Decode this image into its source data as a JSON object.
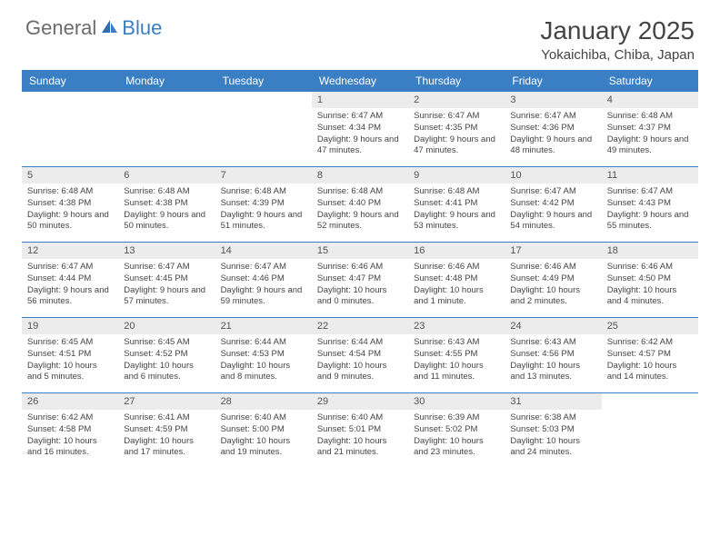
{
  "logo": {
    "text_gray": "General",
    "text_blue": "Blue"
  },
  "title": "January 2025",
  "location": "Yokaichiba, Chiba, Japan",
  "colors": {
    "accent": "#3a7fc4",
    "header_bg": "#ececec",
    "text": "#444444",
    "logo_gray": "#6b6b6b"
  },
  "day_headers": [
    "Sunday",
    "Monday",
    "Tuesday",
    "Wednesday",
    "Thursday",
    "Friday",
    "Saturday"
  ],
  "weeks": [
    [
      {
        "empty": true
      },
      {
        "empty": true
      },
      {
        "empty": true
      },
      {
        "num": "1",
        "sunrise": "Sunrise: 6:47 AM",
        "sunset": "Sunset: 4:34 PM",
        "daylight": "Daylight: 9 hours and 47 minutes."
      },
      {
        "num": "2",
        "sunrise": "Sunrise: 6:47 AM",
        "sunset": "Sunset: 4:35 PM",
        "daylight": "Daylight: 9 hours and 47 minutes."
      },
      {
        "num": "3",
        "sunrise": "Sunrise: 6:47 AM",
        "sunset": "Sunset: 4:36 PM",
        "daylight": "Daylight: 9 hours and 48 minutes."
      },
      {
        "num": "4",
        "sunrise": "Sunrise: 6:48 AM",
        "sunset": "Sunset: 4:37 PM",
        "daylight": "Daylight: 9 hours and 49 minutes."
      }
    ],
    [
      {
        "num": "5",
        "sunrise": "Sunrise: 6:48 AM",
        "sunset": "Sunset: 4:38 PM",
        "daylight": "Daylight: 9 hours and 50 minutes."
      },
      {
        "num": "6",
        "sunrise": "Sunrise: 6:48 AM",
        "sunset": "Sunset: 4:38 PM",
        "daylight": "Daylight: 9 hours and 50 minutes."
      },
      {
        "num": "7",
        "sunrise": "Sunrise: 6:48 AM",
        "sunset": "Sunset: 4:39 PM",
        "daylight": "Daylight: 9 hours and 51 minutes."
      },
      {
        "num": "8",
        "sunrise": "Sunrise: 6:48 AM",
        "sunset": "Sunset: 4:40 PM",
        "daylight": "Daylight: 9 hours and 52 minutes."
      },
      {
        "num": "9",
        "sunrise": "Sunrise: 6:48 AM",
        "sunset": "Sunset: 4:41 PM",
        "daylight": "Daylight: 9 hours and 53 minutes."
      },
      {
        "num": "10",
        "sunrise": "Sunrise: 6:47 AM",
        "sunset": "Sunset: 4:42 PM",
        "daylight": "Daylight: 9 hours and 54 minutes."
      },
      {
        "num": "11",
        "sunrise": "Sunrise: 6:47 AM",
        "sunset": "Sunset: 4:43 PM",
        "daylight": "Daylight: 9 hours and 55 minutes."
      }
    ],
    [
      {
        "num": "12",
        "sunrise": "Sunrise: 6:47 AM",
        "sunset": "Sunset: 4:44 PM",
        "daylight": "Daylight: 9 hours and 56 minutes."
      },
      {
        "num": "13",
        "sunrise": "Sunrise: 6:47 AM",
        "sunset": "Sunset: 4:45 PM",
        "daylight": "Daylight: 9 hours and 57 minutes."
      },
      {
        "num": "14",
        "sunrise": "Sunrise: 6:47 AM",
        "sunset": "Sunset: 4:46 PM",
        "daylight": "Daylight: 9 hours and 59 minutes."
      },
      {
        "num": "15",
        "sunrise": "Sunrise: 6:46 AM",
        "sunset": "Sunset: 4:47 PM",
        "daylight": "Daylight: 10 hours and 0 minutes."
      },
      {
        "num": "16",
        "sunrise": "Sunrise: 6:46 AM",
        "sunset": "Sunset: 4:48 PM",
        "daylight": "Daylight: 10 hours and 1 minute."
      },
      {
        "num": "17",
        "sunrise": "Sunrise: 6:46 AM",
        "sunset": "Sunset: 4:49 PM",
        "daylight": "Daylight: 10 hours and 2 minutes."
      },
      {
        "num": "18",
        "sunrise": "Sunrise: 6:46 AM",
        "sunset": "Sunset: 4:50 PM",
        "daylight": "Daylight: 10 hours and 4 minutes."
      }
    ],
    [
      {
        "num": "19",
        "sunrise": "Sunrise: 6:45 AM",
        "sunset": "Sunset: 4:51 PM",
        "daylight": "Daylight: 10 hours and 5 minutes."
      },
      {
        "num": "20",
        "sunrise": "Sunrise: 6:45 AM",
        "sunset": "Sunset: 4:52 PM",
        "daylight": "Daylight: 10 hours and 6 minutes."
      },
      {
        "num": "21",
        "sunrise": "Sunrise: 6:44 AM",
        "sunset": "Sunset: 4:53 PM",
        "daylight": "Daylight: 10 hours and 8 minutes."
      },
      {
        "num": "22",
        "sunrise": "Sunrise: 6:44 AM",
        "sunset": "Sunset: 4:54 PM",
        "daylight": "Daylight: 10 hours and 9 minutes."
      },
      {
        "num": "23",
        "sunrise": "Sunrise: 6:43 AM",
        "sunset": "Sunset: 4:55 PM",
        "daylight": "Daylight: 10 hours and 11 minutes."
      },
      {
        "num": "24",
        "sunrise": "Sunrise: 6:43 AM",
        "sunset": "Sunset: 4:56 PM",
        "daylight": "Daylight: 10 hours and 13 minutes."
      },
      {
        "num": "25",
        "sunrise": "Sunrise: 6:42 AM",
        "sunset": "Sunset: 4:57 PM",
        "daylight": "Daylight: 10 hours and 14 minutes."
      }
    ],
    [
      {
        "num": "26",
        "sunrise": "Sunrise: 6:42 AM",
        "sunset": "Sunset: 4:58 PM",
        "daylight": "Daylight: 10 hours and 16 minutes."
      },
      {
        "num": "27",
        "sunrise": "Sunrise: 6:41 AM",
        "sunset": "Sunset: 4:59 PM",
        "daylight": "Daylight: 10 hours and 17 minutes."
      },
      {
        "num": "28",
        "sunrise": "Sunrise: 6:40 AM",
        "sunset": "Sunset: 5:00 PM",
        "daylight": "Daylight: 10 hours and 19 minutes."
      },
      {
        "num": "29",
        "sunrise": "Sunrise: 6:40 AM",
        "sunset": "Sunset: 5:01 PM",
        "daylight": "Daylight: 10 hours and 21 minutes."
      },
      {
        "num": "30",
        "sunrise": "Sunrise: 6:39 AM",
        "sunset": "Sunset: 5:02 PM",
        "daylight": "Daylight: 10 hours and 23 minutes."
      },
      {
        "num": "31",
        "sunrise": "Sunrise: 6:38 AM",
        "sunset": "Sunset: 5:03 PM",
        "daylight": "Daylight: 10 hours and 24 minutes."
      },
      {
        "empty": true
      }
    ]
  ]
}
